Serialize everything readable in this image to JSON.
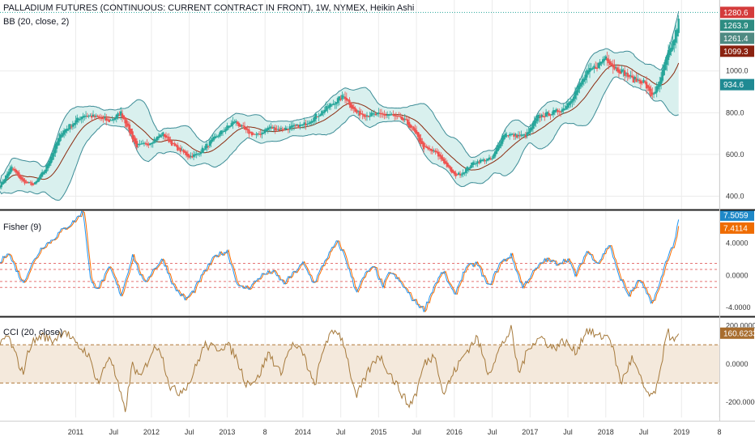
{
  "header": {
    "title": "PALLADIUM FUTURES (CONTINUOUS: CURRENT CONTRACT IN FRONT), 1W, NYMEX, Heikin Ashi"
  },
  "colors": {
    "bull": "#26a69a",
    "bear": "#ef5350",
    "bb_band": "#3c8c96",
    "bb_fill": "#d9f0ee",
    "bb_basis": "#8b2b0f",
    "fisher": "#2196f3",
    "fisher_trigger": "#ff6d00",
    "fisher_levels": "#e57373",
    "cci": "#a67a3c",
    "cci_band": "#f4e9dc",
    "cci_levels": "#b07a3a",
    "grid": "#ebebeb",
    "separator": "#222222"
  },
  "chart_data": [
    {
      "type": "candlestick",
      "title": "PALLADIUM FUTURES (CONTINUOUS: CURRENT CONTRACT IN FRONT), 1W, NYMEX, Heikin Ashi",
      "indicator": "BB (20, close, 2)",
      "y_ticks": [
        "400.0",
        "600.0",
        "800.0",
        "1000.0"
      ],
      "ylim": [
        340,
        1340
      ],
      "x_ticks": [
        "2011",
        "Jul",
        "2012",
        "Jul",
        "2013",
        "8",
        "2014",
        "Jul",
        "2015",
        "Jul",
        "2016",
        "Jul",
        "2017",
        "Jul",
        "2018",
        "Jul",
        "2019",
        "8"
      ],
      "x_tick_dates": [
        2011.0,
        2011.5,
        2012.0,
        2012.5,
        2013.0,
        2013.5,
        2014.0,
        2014.5,
        2015.0,
        2015.5,
        2016.0,
        2016.5,
        2017.0,
        2017.5,
        2018.0,
        2018.5,
        2019.0,
        2019.5
      ],
      "x_range": [
        2010.0,
        2019.5
      ],
      "price_path": [
        [
          2010.0,
          450
        ],
        [
          2010.15,
          540
        ],
        [
          2010.3,
          470
        ],
        [
          2010.45,
          455
        ],
        [
          2010.6,
          530
        ],
        [
          2010.8,
          700
        ],
        [
          2011.1,
          790
        ],
        [
          2011.25,
          780
        ],
        [
          2011.45,
          760
        ],
        [
          2011.6,
          800
        ],
        [
          2011.7,
          720
        ],
        [
          2011.8,
          640
        ],
        [
          2011.95,
          650
        ],
        [
          2012.15,
          700
        ],
        [
          2012.3,
          640
        ],
        [
          2012.5,
          590
        ],
        [
          2012.6,
          600
        ],
        [
          2012.75,
          650
        ],
        [
          2012.9,
          700
        ],
        [
          2013.1,
          760
        ],
        [
          2013.25,
          710
        ],
        [
          2013.4,
          690
        ],
        [
          2013.55,
          730
        ],
        [
          2013.7,
          720
        ],
        [
          2013.85,
          730
        ],
        [
          2014.0,
          740
        ],
        [
          2014.2,
          790
        ],
        [
          2014.45,
          860
        ],
        [
          2014.55,
          880
        ],
        [
          2014.7,
          800
        ],
        [
          2014.85,
          790
        ],
        [
          2015.0,
          790
        ],
        [
          2015.15,
          790
        ],
        [
          2015.35,
          760
        ],
        [
          2015.45,
          720
        ],
        [
          2015.6,
          630
        ],
        [
          2015.75,
          610
        ],
        [
          2015.85,
          570
        ],
        [
          2016.0,
          500
        ],
        [
          2016.1,
          510
        ],
        [
          2016.25,
          560
        ],
        [
          2016.35,
          570
        ],
        [
          2016.5,
          580
        ],
        [
          2016.65,
          700
        ],
        [
          2016.8,
          690
        ],
        [
          2016.95,
          690
        ],
        [
          2017.1,
          780
        ],
        [
          2017.3,
          800
        ],
        [
          2017.45,
          820
        ],
        [
          2017.6,
          900
        ],
        [
          2017.75,
          990
        ],
        [
          2017.9,
          1030
        ],
        [
          2018.0,
          1070
        ],
        [
          2018.1,
          1020
        ],
        [
          2018.25,
          990
        ],
        [
          2018.35,
          960
        ],
        [
          2018.5,
          950
        ],
        [
          2018.6,
          880
        ],
        [
          2018.7,
          930
        ],
        [
          2018.8,
          1060
        ],
        [
          2018.9,
          1150
        ],
        [
          2018.98,
          1263.9
        ]
      ],
      "badges": [
        {
          "value": "1280.6",
          "color": "#d43b3b"
        },
        {
          "value": "1263.9",
          "color": "#2d8c82"
        },
        {
          "value": "1261.4",
          "color": "#4e8a82"
        },
        {
          "value": "1099.3",
          "color": "#8b2210"
        },
        {
          "value": "934.6",
          "color": "#1f8a93"
        }
      ],
      "badge_prices": [
        1280.6,
        1263.9,
        1261.4,
        1099.3,
        934.6
      ]
    },
    {
      "type": "line",
      "indicator": "Fisher (9)",
      "y_ticks": [
        "-4.0000",
        "0.0000",
        "4.0000"
      ],
      "y_tick_values": [
        -4,
        0,
        4
      ],
      "ylim": [
        -5,
        8
      ],
      "levels": [
        -1.5,
        -0.75,
        0.75,
        1.5
      ],
      "path": [
        [
          2010.0,
          1.5
        ],
        [
          2010.1,
          3.0
        ],
        [
          2010.2,
          1.0
        ],
        [
          2010.3,
          -1.0
        ],
        [
          2010.4,
          1.0
        ],
        [
          2010.55,
          3.5
        ],
        [
          2010.7,
          4.5
        ],
        [
          2010.8,
          5.5
        ],
        [
          2010.95,
          6.5
        ],
        [
          2011.1,
          8.0
        ],
        [
          2011.2,
          -1.0
        ],
        [
          2011.3,
          -1.5
        ],
        [
          2011.45,
          1.0
        ],
        [
          2011.6,
          -2.5
        ],
        [
          2011.75,
          2.5
        ],
        [
          2011.9,
          -1.0
        ],
        [
          2012.05,
          1.0
        ],
        [
          2012.15,
          2.0
        ],
        [
          2012.3,
          -1.5
        ],
        [
          2012.45,
          -3.0
        ],
        [
          2012.55,
          -2.0
        ],
        [
          2012.7,
          0.5
        ],
        [
          2012.85,
          2.5
        ],
        [
          2013.0,
          3.0
        ],
        [
          2013.15,
          -1.5
        ],
        [
          2013.3,
          -1.5
        ],
        [
          2013.45,
          0.0
        ],
        [
          2013.6,
          0.5
        ],
        [
          2013.75,
          -1.0
        ],
        [
          2013.9,
          0.5
        ],
        [
          2014.0,
          1.5
        ],
        [
          2014.15,
          -1.0
        ],
        [
          2014.3,
          2.0
        ],
        [
          2014.45,
          4.2
        ],
        [
          2014.55,
          2.5
        ],
        [
          2014.7,
          -2.0
        ],
        [
          2014.85,
          0.5
        ],
        [
          2014.95,
          1.0
        ],
        [
          2015.05,
          -1.5
        ],
        [
          2015.15,
          0.5
        ],
        [
          2015.3,
          -1.0
        ],
        [
          2015.45,
          -3.0
        ],
        [
          2015.6,
          -4.3
        ],
        [
          2015.75,
          -1.0
        ],
        [
          2015.85,
          0.5
        ],
        [
          2016.0,
          -2.5
        ],
        [
          2016.15,
          1.0
        ],
        [
          2016.3,
          1.5
        ],
        [
          2016.45,
          -1.5
        ],
        [
          2016.6,
          1.5
        ],
        [
          2016.75,
          2.5
        ],
        [
          2016.9,
          -1.5
        ],
        [
          2017.05,
          0.5
        ],
        [
          2017.2,
          2.0
        ],
        [
          2017.35,
          1.5
        ],
        [
          2017.5,
          2.0
        ],
        [
          2017.6,
          0.0
        ],
        [
          2017.75,
          3.0
        ],
        [
          2017.9,
          1.5
        ],
        [
          2018.05,
          4.0
        ],
        [
          2018.15,
          0.5
        ],
        [
          2018.3,
          -2.5
        ],
        [
          2018.45,
          -0.5
        ],
        [
          2018.6,
          -3.5
        ],
        [
          2018.7,
          -1.5
        ],
        [
          2018.8,
          2.0
        ],
        [
          2018.9,
          4.0
        ],
        [
          2018.98,
          7.5059
        ]
      ],
      "badges": [
        {
          "value": "7.5059",
          "color": "#1e88c8"
        },
        {
          "value": "7.4114",
          "color": "#ef6c00"
        }
      ],
      "badge_values": [
        7.5059,
        7.4114
      ]
    },
    {
      "type": "line",
      "indicator": "CCI (20, close)",
      "y_ticks": [
        "-200.0000",
        "0.0000",
        "200.0000"
      ],
      "y_tick_values": [
        -200,
        0,
        200
      ],
      "ylim": [
        -280,
        240
      ],
      "band": [
        -100,
        100
      ],
      "path": [
        [
          2010.0,
          100
        ],
        [
          2010.1,
          150
        ],
        [
          2010.2,
          50
        ],
        [
          2010.3,
          -50
        ],
        [
          2010.4,
          100
        ],
        [
          2010.55,
          150
        ],
        [
          2010.7,
          120
        ],
        [
          2010.85,
          180
        ],
        [
          2011.0,
          100
        ],
        [
          2011.15,
          60
        ],
        [
          2011.3,
          -100
        ],
        [
          2011.45,
          50
        ],
        [
          2011.55,
          -100
        ],
        [
          2011.65,
          -250
        ],
        [
          2011.75,
          0
        ],
        [
          2011.85,
          -80
        ],
        [
          2012.0,
          60
        ],
        [
          2012.1,
          100
        ],
        [
          2012.25,
          -120
        ],
        [
          2012.35,
          -150
        ],
        [
          2012.5,
          -100
        ],
        [
          2012.6,
          0
        ],
        [
          2012.7,
          100
        ],
        [
          2012.85,
          80
        ],
        [
          2013.0,
          100
        ],
        [
          2013.1,
          50
        ],
        [
          2013.25,
          -100
        ],
        [
          2013.4,
          -80
        ],
        [
          2013.55,
          60
        ],
        [
          2013.7,
          -50
        ],
        [
          2013.85,
          100
        ],
        [
          2014.0,
          60
        ],
        [
          2014.15,
          -120
        ],
        [
          2014.3,
          120
        ],
        [
          2014.45,
          180
        ],
        [
          2014.55,
          100
        ],
        [
          2014.7,
          -180
        ],
        [
          2014.85,
          -50
        ],
        [
          2015.0,
          50
        ],
        [
          2015.15,
          -50
        ],
        [
          2015.3,
          -150
        ],
        [
          2015.4,
          -220
        ],
        [
          2015.5,
          -150
        ],
        [
          2015.6,
          0
        ],
        [
          2015.75,
          50
        ],
        [
          2015.85,
          -160
        ],
        [
          2016.0,
          -40
        ],
        [
          2016.15,
          60
        ],
        [
          2016.3,
          140
        ],
        [
          2016.45,
          -50
        ],
        [
          2016.6,
          80
        ],
        [
          2016.75,
          180
        ],
        [
          2016.85,
          -50
        ],
        [
          2017.0,
          100
        ],
        [
          2017.15,
          140
        ],
        [
          2017.3,
          80
        ],
        [
          2017.45,
          120
        ],
        [
          2017.6,
          60
        ],
        [
          2017.75,
          180
        ],
        [
          2017.9,
          140
        ],
        [
          2018.05,
          150
        ],
        [
          2018.2,
          -100
        ],
        [
          2018.35,
          30
        ],
        [
          2018.5,
          -120
        ],
        [
          2018.6,
          -180
        ],
        [
          2018.7,
          -100
        ],
        [
          2018.8,
          180
        ],
        [
          2018.9,
          110
        ],
        [
          2018.98,
          160.6233
        ]
      ],
      "badges": [
        {
          "value": "160.6233",
          "color": "#a86d2e"
        }
      ],
      "badge_values": [
        160.6233
      ]
    }
  ]
}
